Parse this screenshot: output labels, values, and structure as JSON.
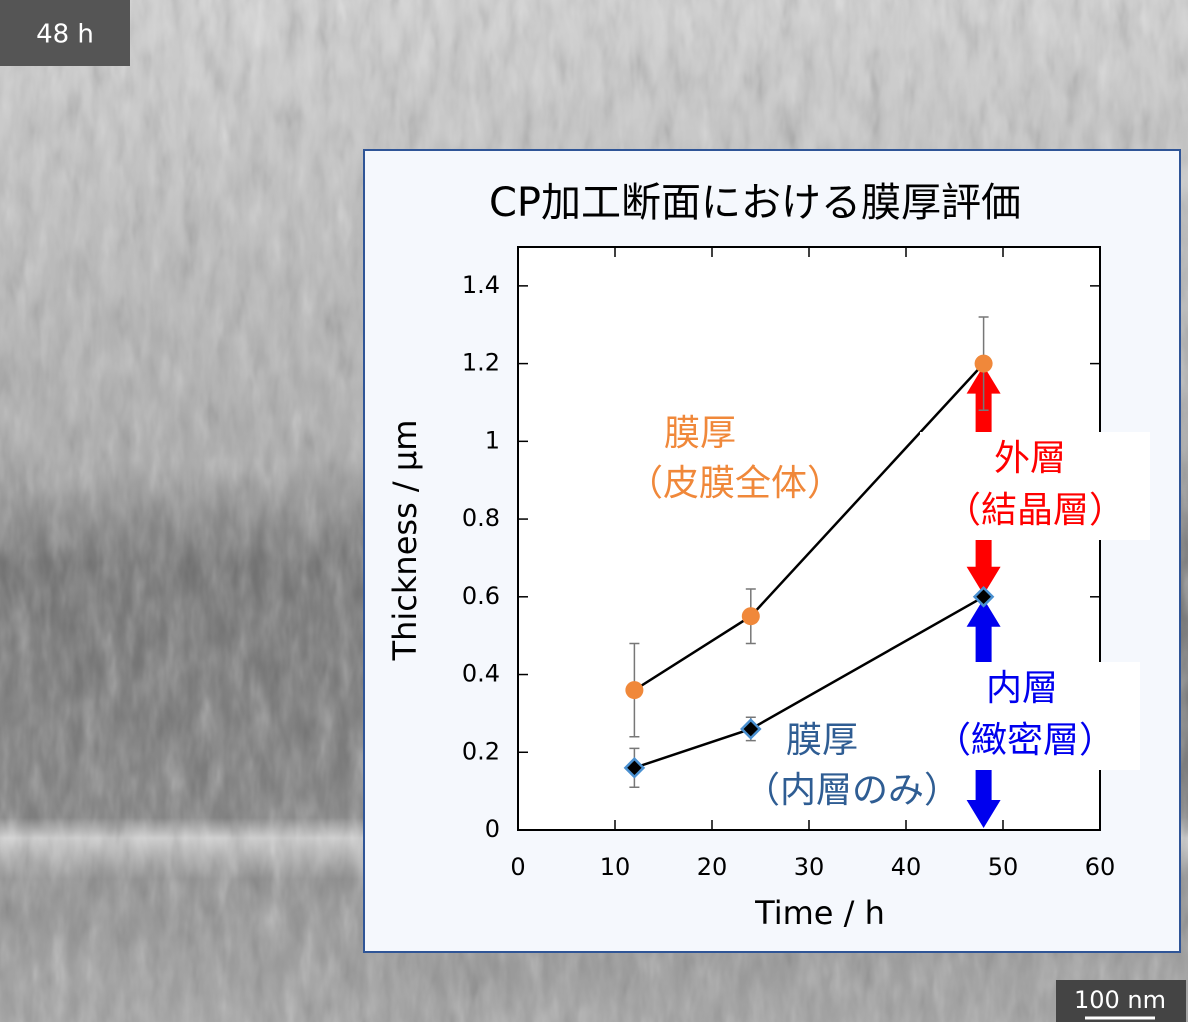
{
  "image_labels": {
    "time": "48 h",
    "scale": "100 nm"
  },
  "chart_data": {
    "type": "line",
    "title": "CP加工断面における膜厚評価",
    "x_label": "Time / h",
    "y_label": "Thickness / μm",
    "xlim": [
      0,
      60
    ],
    "xticks": [
      0,
      10,
      20,
      30,
      40,
      50,
      60
    ],
    "ylim": [
      0,
      1.5
    ],
    "yticks": [
      0,
      0.2,
      0.4,
      0.6,
      0.8,
      1,
      1.2,
      1.4
    ],
    "x": [
      12,
      24,
      48
    ],
    "series": [
      {
        "color": "#f0883a",
        "marker": "circle",
        "values": [
          0.36,
          0.55,
          1.2
        ],
        "errors": [
          0.12,
          0.07,
          0.12
        ]
      },
      {
        "color": "#4a90d0",
        "marker": "diamond",
        "values": [
          0.16,
          0.26,
          0.6
        ],
        "errors": [
          0.05,
          0.03,
          0
        ]
      }
    ],
    "annotations": [
      {
        "lines": [
          "膜厚",
          "（皮膜全体）"
        ],
        "color": "#f0883a"
      },
      {
        "lines": [
          "膜厚",
          "（内層のみ）"
        ],
        "color": "#2f5d93"
      },
      {
        "lines": [
          "外層",
          "（結晶層）"
        ],
        "color": "#ff0000"
      },
      {
        "lines": [
          "内層",
          "（緻密層）"
        ],
        "color": "#0000ee"
      }
    ]
  }
}
